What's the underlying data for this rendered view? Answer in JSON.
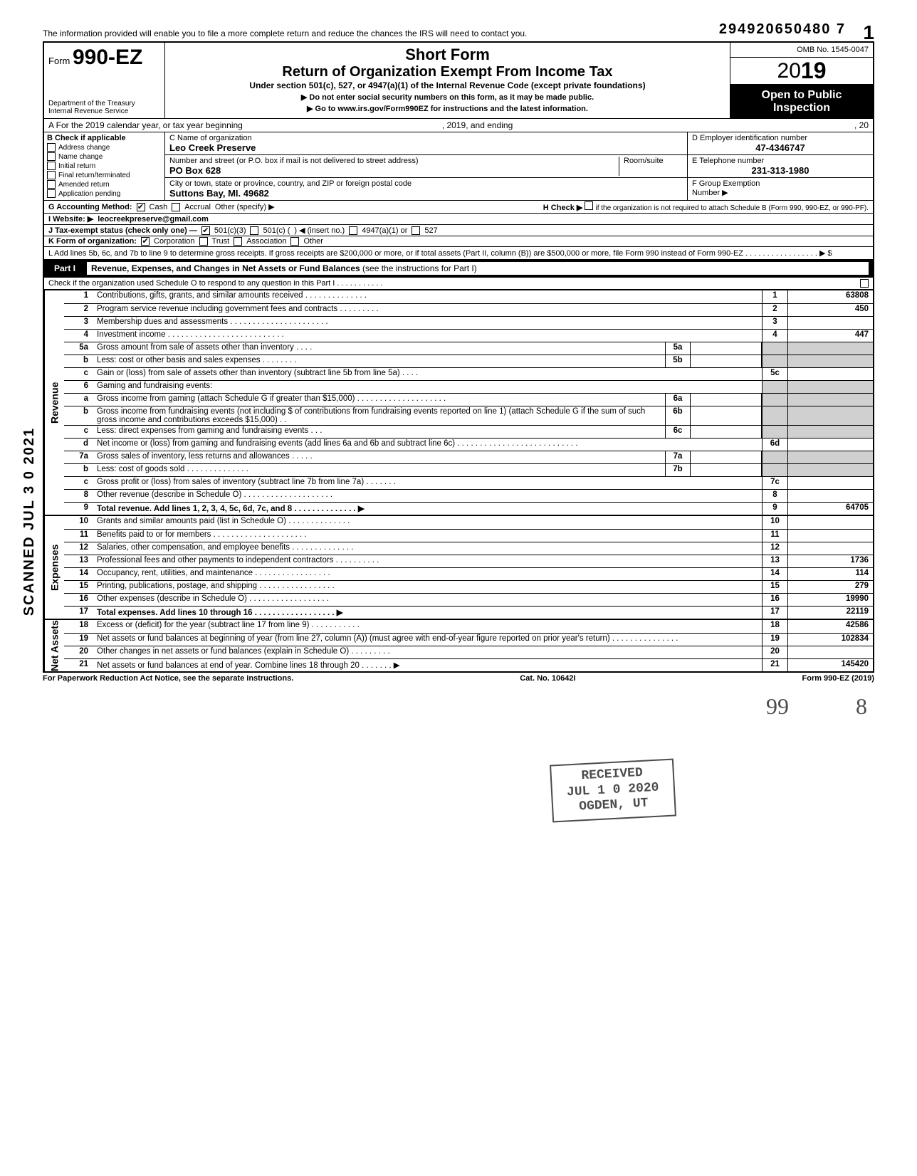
{
  "stamp_number": "294920650480 7",
  "page_number": "1",
  "top_note": "The information provided will enable you to file a more complete return and reduce the chances the IRS will need to contact you.",
  "header": {
    "form_prefix": "Form",
    "form_number": "990-EZ",
    "short_form": "Short Form",
    "title": "Return of Organization Exempt From Income Tax",
    "subtitle": "Under section 501(c), 527, or 4947(a)(1) of the Internal Revenue Code (except private foundations)",
    "warn1": "▶ Do not enter social security numbers on this form, as it may be made public.",
    "warn2": "▶ Go to www.irs.gov/Form990EZ for instructions and the latest information.",
    "dept1": "Department of the Treasury",
    "dept2": "Internal Revenue Service",
    "omb": "OMB No. 1545-0047",
    "year_outline": "20",
    "year_bold": "19",
    "open1": "Open to Public",
    "open2": "Inspection"
  },
  "row_a": {
    "label": "A  For the 2019 calendar year, or tax year beginning",
    "mid": ", 2019, and ending",
    "end": ", 20"
  },
  "col_b": {
    "header": "B  Check if applicable",
    "items": [
      "Address change",
      "Name change",
      "Initial return",
      "Final return/terminated",
      "Amended return",
      "Application pending"
    ]
  },
  "col_c": {
    "name_label": "C  Name of organization",
    "name_value": "Leo Creek Preserve",
    "street_label": "Number and street (or P.O. box if mail is not delivered to street address)",
    "room_label": "Room/suite",
    "street_value": "PO Box 628",
    "city_label": "City or town, state or province, country, and ZIP or foreign postal code",
    "city_value": "Suttons Bay, MI. 49682"
  },
  "col_def": {
    "d_label": "D Employer identification number",
    "d_value": "47-4346747",
    "e_label": "E Telephone number",
    "e_value": "231-313-1980",
    "f_label": "F Group Exemption",
    "f_label2": "Number ▶"
  },
  "row_g": {
    "label": "G  Accounting Method:",
    "cash": "Cash",
    "accrual": "Accrual",
    "other": "Other (specify) ▶",
    "h_label": "H  Check ▶",
    "h_text": "if the organization is not required to attach Schedule B (Form 990, 990-EZ, or 990-PF)."
  },
  "row_i": {
    "label": "I   Website: ▶",
    "value": "leocreekpreserve@gmail.com"
  },
  "row_j": {
    "label": "J  Tax-exempt status (check only one) —",
    "o1": "501(c)(3)",
    "o2": "501(c) (",
    "o2b": ") ◀ (insert no.)",
    "o3": "4947(a)(1) or",
    "o4": "527"
  },
  "row_k": {
    "label": "K  Form of organization:",
    "o1": "Corporation",
    "o2": "Trust",
    "o3": "Association",
    "o4": "Other"
  },
  "row_l": "L  Add lines 5b, 6c, and 7b to line 9 to determine gross receipts. If gross receipts are $200,000 or more, or if total assets (Part II, column (B)) are $500,000 or more, file Form 990 instead of Form 990-EZ . . . . . . . . . . . . . . . . . ▶  $",
  "part1": {
    "label": "Part I",
    "title_bold": "Revenue, Expenses, and Changes in Net Assets or Fund Balances",
    "title_rest": " (see the instructions for Part I)",
    "check_line": "Check if the organization used Schedule O to respond to any question in this Part I  .  .  .  .  .  .  .  .  .  .  ."
  },
  "sections": {
    "revenue_label": "Revenue",
    "expenses_label": "Expenses",
    "netassets_label": "Net Assets"
  },
  "lines": [
    {
      "n": "1",
      "d": "Contributions, gifts, grants, and similar amounts received .  .  .  .  .  .  .  .  .  .  .  .  .  .",
      "rn": "1",
      "rv": "63808"
    },
    {
      "n": "2",
      "d": "Program service revenue including government fees and contracts   .  .  .  .  .  .  .  .  .",
      "rn": "2",
      "rv": "450"
    },
    {
      "n": "3",
      "d": "Membership dues and assessments .  .  .  .  .  .  .  .  .  .  .  .  .  .  .  .  .  .  .  .  .  .",
      "rn": "3",
      "rv": ""
    },
    {
      "n": "4",
      "d": "Investment income   .  .  .  .  .  .  .  .  .  .  .  .  .  .  .  .  .  .  .  .  .  .  .  .  .  .",
      "rn": "4",
      "rv": "447"
    },
    {
      "n": "5a",
      "d": "Gross amount from sale of assets other than inventory   .  .  .  .",
      "mn": "5a",
      "mv": ""
    },
    {
      "n": "b",
      "d": "Less: cost or other basis and sales expenses .  .  .  .  .  .  .  .",
      "mn": "5b",
      "mv": ""
    },
    {
      "n": "c",
      "d": "Gain or (loss) from sale of assets other than inventory (subtract line 5b from line 5a)  .  .  .  .",
      "rn": "5c",
      "rv": ""
    },
    {
      "n": "6",
      "d": "Gaming and fundraising events:"
    },
    {
      "n": "a",
      "d": "Gross income from gaming (attach Schedule G if greater than $15,000) .  .  .  .  .  .  .  .  .  .  .  .  .  .  .  .  .  .  .  .",
      "mn": "6a",
      "mv": ""
    },
    {
      "n": "b",
      "d": "Gross income from fundraising events (not including  $                      of contributions from fundraising events reported on line 1) (attach Schedule G if the sum of such gross income and contributions exceeds $15,000) .  .",
      "mn": "6b",
      "mv": ""
    },
    {
      "n": "c",
      "d": "Less: direct expenses from gaming and fundraising events   .  .  .",
      "mn": "6c",
      "mv": ""
    },
    {
      "n": "d",
      "d": "Net income or (loss) from gaming and fundraising events (add lines 6a and 6b and subtract line 6c)   .  .  .  .  .  .  .  .  .  .  .  .  .  .  .  .  .  .  .  .  .  .  .  .  .  .  .",
      "rn": "6d",
      "rv": ""
    },
    {
      "n": "7a",
      "d": "Gross sales of inventory, less returns and allowances  .  .  .  .  .",
      "mn": "7a",
      "mv": ""
    },
    {
      "n": "b",
      "d": "Less: cost of goods sold    .  .  .  .  .  .  .  .  .  .  .  .  .  .",
      "mn": "7b",
      "mv": ""
    },
    {
      "n": "c",
      "d": "Gross profit or (loss) from sales of inventory (subtract line 7b from line 7a)   .  .  .  .  .  .  .",
      "rn": "7c",
      "rv": ""
    },
    {
      "n": "8",
      "d": "Other revenue (describe in Schedule O) .  .  .  .  .  .  .  .  .  .  .  .  .  .  .  .  .  .  .  .",
      "rn": "8",
      "rv": ""
    },
    {
      "n": "9",
      "d": "Total revenue. Add lines 1, 2, 3, 4, 5c, 6d, 7c, and 8   .  .  .  .  .  .  .  .  .  .  .  .  .  . ▶",
      "rn": "9",
      "rv": "64705",
      "bold": true
    },
    {
      "n": "10",
      "d": "Grants and similar amounts paid (list in Schedule O)   .  .  .  .  .  .  .  .  .  .  .  .  .  .",
      "rn": "10",
      "rv": ""
    },
    {
      "n": "11",
      "d": "Benefits paid to or for members   .  .  .  .  .  .  .  .  .  .  .  .  .  .  .  .  .  .  .  .  .",
      "rn": "11",
      "rv": ""
    },
    {
      "n": "12",
      "d": "Salaries, other compensation, and employee benefits  .  .  .  .  .  .  .  .  .  .  .  .  .  .",
      "rn": "12",
      "rv": ""
    },
    {
      "n": "13",
      "d": "Professional fees and other payments to independent contractors  .  .  .  .  .  .  .  .  .  .",
      "rn": "13",
      "rv": "1736"
    },
    {
      "n": "14",
      "d": "Occupancy, rent, utilities, and maintenance    .  .  .  .  .  .  .  .  .  .  .  .  .  .  .  .  .",
      "rn": "14",
      "rv": "114"
    },
    {
      "n": "15",
      "d": "Printing, publications, postage, and shipping .  .  .  .  .  .  .  .  .  .  .  .  .  .  .  .  .",
      "rn": "15",
      "rv": "279"
    },
    {
      "n": "16",
      "d": "Other expenses (describe in Schedule O)  .  .  .  .  .  .  .  .  .  .  .  .  .  .  .  .  .  .",
      "rn": "16",
      "rv": "19990"
    },
    {
      "n": "17",
      "d": "Total expenses. Add lines 10 through 16  .  .  .  .  .  .  .  .  .  .  .  .  .  .  .  .  .  . ▶",
      "rn": "17",
      "rv": "22119",
      "bold": true
    },
    {
      "n": "18",
      "d": "Excess or (deficit) for the year (subtract line 17 from line 9)    .  .  .  .  .  .  .  .  .  .  .",
      "rn": "18",
      "rv": "42586"
    },
    {
      "n": "19",
      "d": "Net assets or fund balances at beginning of year (from line 27, column (A)) (must agree with end-of-year figure reported on prior year's return)    .  .  .  .  .  .  .  .  .  .  .  .  .  .  .",
      "rn": "19",
      "rv": "102834"
    },
    {
      "n": "20",
      "d": "Other changes in net assets or fund balances (explain in Schedule O) .  .  .  .  .  .  .  .  .",
      "rn": "20",
      "rv": ""
    },
    {
      "n": "21",
      "d": "Net assets or fund balances at end of year. Combine lines 18 through 20   .  .  .  .  .  .  . ▶",
      "rn": "21",
      "rv": "145420"
    }
  ],
  "section_breaks": {
    "expenses_start": "10",
    "netassets_start": "18"
  },
  "footer": {
    "left": "For Paperwork Reduction Act Notice, see the separate instructions.",
    "mid": "Cat. No. 10642I",
    "right": "Form 990-EZ (2019)"
  },
  "scanned": "SCANNED JUL 3 0 2021",
  "stamp": {
    "l1": "RECEIVED",
    "l2": "JUL 1 0 2020",
    "l3": "OGDEN, UT"
  },
  "handwritten": {
    "qq": "99",
    "eight": "8"
  }
}
